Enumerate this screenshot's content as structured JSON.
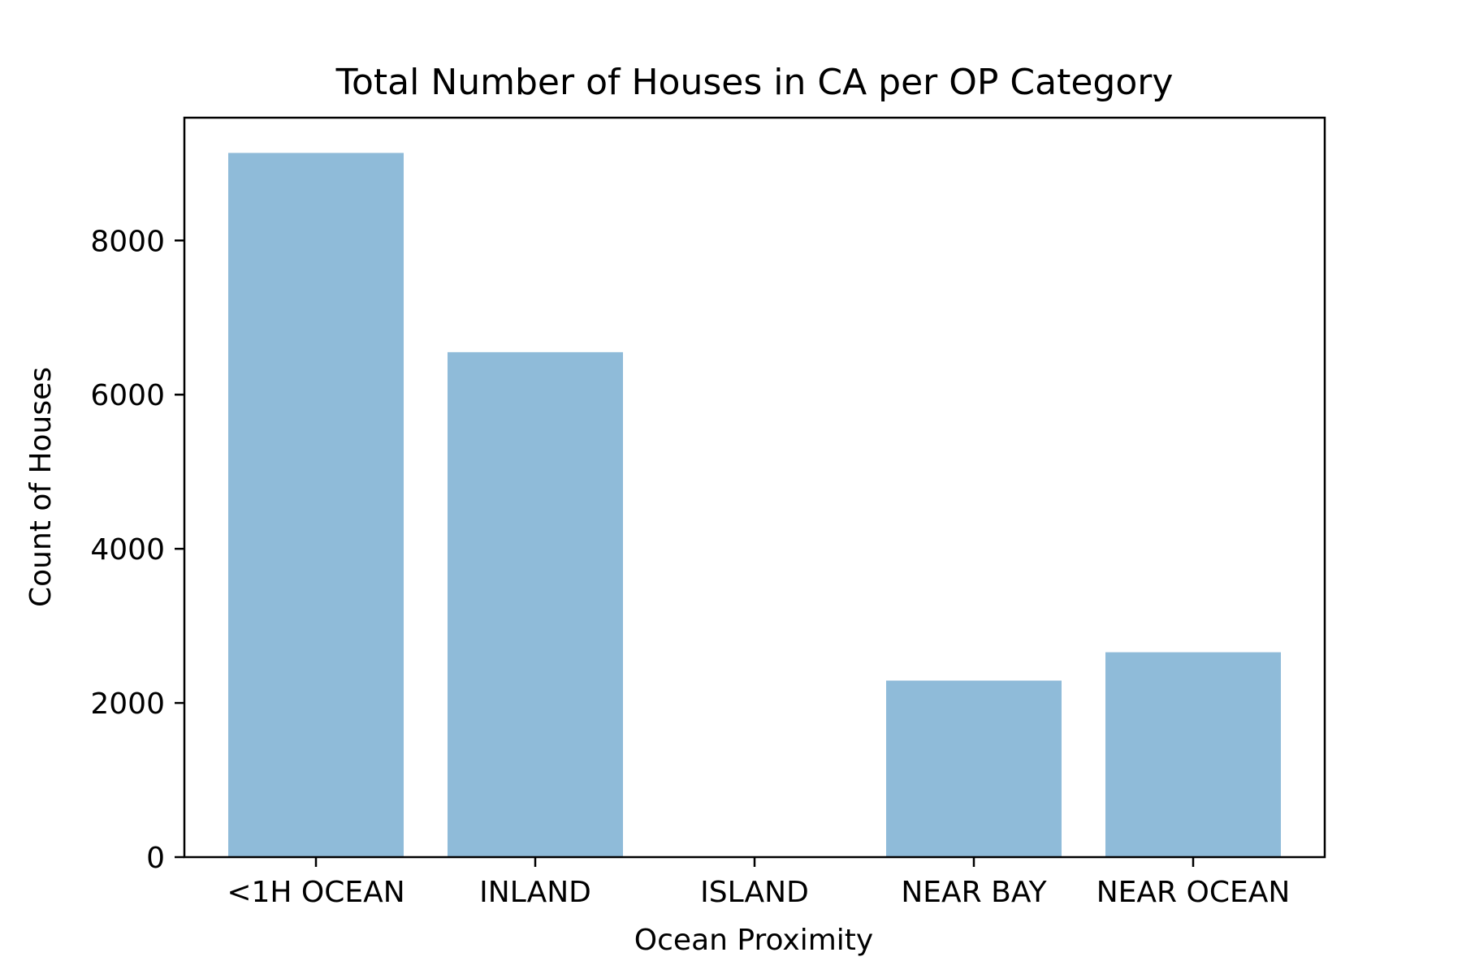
{
  "chart_data": {
    "type": "bar",
    "title": "Total Number of Houses in CA per OP Category",
    "xlabel": "Ocean Proximity",
    "ylabel": "Count of Houses",
    "categories": [
      "<1H OCEAN",
      "INLAND",
      "ISLAND",
      "NEAR BAY",
      "NEAR OCEAN"
    ],
    "values": [
      9136,
      6551,
      5,
      2290,
      2658
    ],
    "ylim": [
      0,
      9593
    ],
    "yticks": [
      0,
      2000,
      4000,
      6000,
      8000
    ],
    "grid": false,
    "legend": "none",
    "bar_color": "#1f77b4",
    "bar_opacity": 0.5
  }
}
